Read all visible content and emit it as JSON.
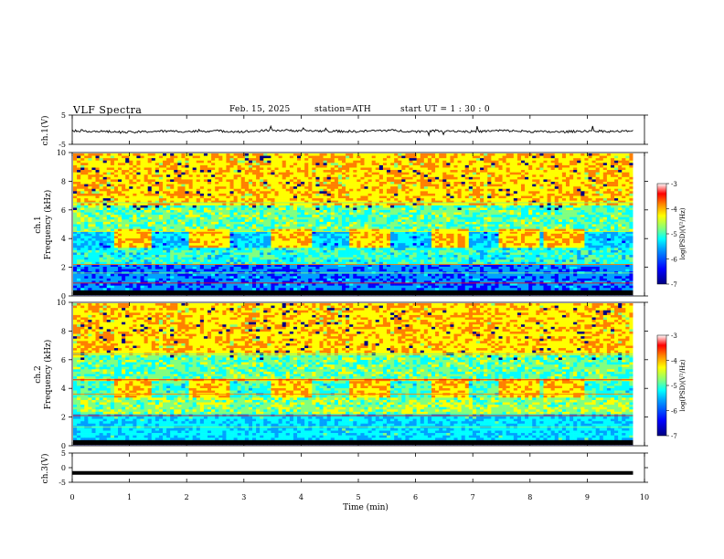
{
  "header": {
    "title": "VLF  Spectra",
    "date": "Feb. 15, 2025",
    "station": "station=ATH",
    "start_ut": "start  UT  =   1  : 30 : 0"
  },
  "chart_data": [
    {
      "type": "line",
      "panel": "ch1-waveform",
      "ylabel": "ch.1(V)",
      "ylim": [
        -5,
        5
      ],
      "yticks": [
        "5",
        "-5"
      ],
      "xlim": [
        0,
        10
      ],
      "x": [
        0,
        0.5,
        1,
        1.5,
        2,
        2.5,
        3,
        3.5,
        4,
        4.5,
        5,
        5.5,
        6,
        6.5,
        7,
        7.5,
        8,
        8.5,
        9,
        9.5,
        9.8
      ],
      "values": [
        -0.3,
        -0.6,
        -0.9,
        -0.5,
        -0.6,
        -0.4,
        -0.7,
        -0.2,
        -0.3,
        -0.5,
        -0.6,
        -0.2,
        -0.6,
        -0.3,
        -0.7,
        -0.3,
        -0.6,
        -0.8,
        -0.4,
        -0.6,
        -0.5
      ],
      "color": "#000000"
    },
    {
      "type": "heatmap",
      "panel": "ch1-spectrogram",
      "ylabel": "ch.1 Frequency (kHz)",
      "ylim": [
        0,
        10
      ],
      "yticks": [
        "0",
        "2",
        "4",
        "6",
        "8",
        "10"
      ],
      "xlim": [
        0,
        10
      ],
      "colorbar": {
        "label": "log(PSD)(V²/Hz)",
        "range": [
          -7,
          -3
        ],
        "ticks": [
          "-3",
          "-4",
          "-5",
          "-6",
          "-7"
        ]
      }
    },
    {
      "type": "heatmap",
      "panel": "ch2-spectrogram",
      "ylabel": "ch.2 Frequency (kHz)",
      "ylim": [
        0,
        10
      ],
      "yticks": [
        "0",
        "2",
        "4",
        "6",
        "8",
        "10"
      ],
      "xlim": [
        0,
        10
      ],
      "colorbar": {
        "label": "log(PSD)(V²/Hz)",
        "range": [
          -7,
          -3
        ],
        "ticks": [
          "-3",
          "-4",
          "-5",
          "-6",
          "-7"
        ]
      }
    },
    {
      "type": "line",
      "panel": "ch3-waveform",
      "ylabel": "ch.3(V)",
      "ylim": [
        -5,
        5
      ],
      "yticks": [
        "5",
        "0",
        "-5"
      ],
      "xlim": [
        0,
        10
      ],
      "x": [
        0,
        9.8
      ],
      "values": [
        -1.8,
        -1.8
      ],
      "color": "#000000"
    }
  ],
  "xaxis": {
    "label": "Time  (min)",
    "ticks": [
      "0",
      "1",
      "2",
      "3",
      "4",
      "5",
      "6",
      "7",
      "8",
      "9",
      "10"
    ]
  },
  "colors": {
    "colormap": [
      "#000080",
      "#0000ff",
      "#00a0ff",
      "#00ffff",
      "#80ff80",
      "#ffff00",
      "#ff8000",
      "#ff0000",
      "#ffffff"
    ]
  }
}
